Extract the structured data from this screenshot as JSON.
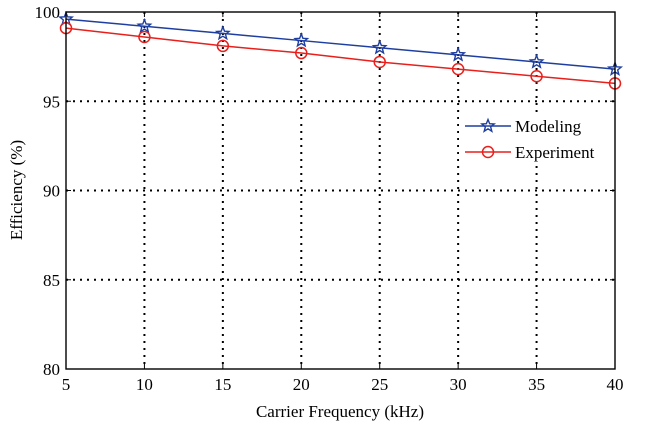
{
  "chart_data": {
    "type": "line",
    "x": [
      5,
      10,
      15,
      20,
      25,
      30,
      35,
      40
    ],
    "series": [
      {
        "name": "Modeling",
        "values": [
          99.6,
          99.2,
          98.8,
          98.4,
          98.0,
          97.6,
          97.2,
          96.8
        ],
        "color": "#1f3fa0",
        "marker": "star"
      },
      {
        "name": "Experiment",
        "values": [
          99.1,
          98.6,
          98.1,
          97.7,
          97.2,
          96.8,
          96.4,
          96.0
        ],
        "color": "#e8201c",
        "marker": "circle"
      }
    ],
    "xlabel": "Carrier Frequency (kHz)",
    "ylabel": "Efficiency (%)",
    "xlim": [
      5,
      40
    ],
    "ylim": [
      80,
      100
    ],
    "xticks": [
      "5",
      "10",
      "15",
      "20",
      "25",
      "30",
      "35",
      "40"
    ],
    "yticks": [
      "80",
      "85",
      "90",
      "95",
      "100"
    ],
    "grid": true,
    "legend_position": "right"
  }
}
